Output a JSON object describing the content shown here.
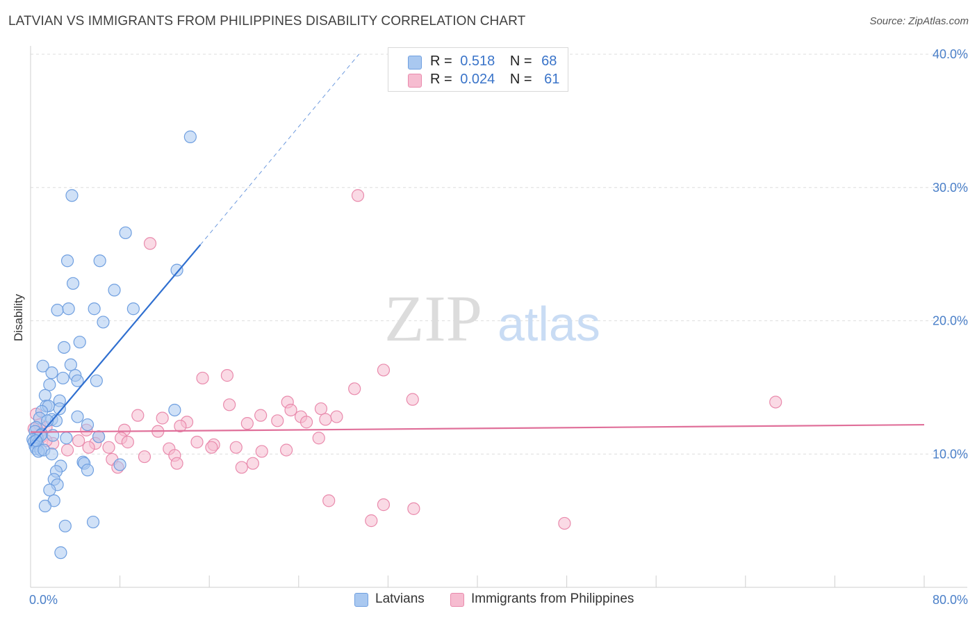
{
  "title": "LATVIAN VS IMMIGRANTS FROM PHILIPPINES DISABILITY CORRELATION CHART",
  "source": "Source: ZipAtlas.com",
  "watermark": {
    "zip": "ZIP",
    "atlas": "atlas"
  },
  "colors": {
    "blue_fill": "#a9c8f0",
    "blue_stroke": "#6f9fe0",
    "blue_line": "#2f6fd0",
    "pink_fill": "#f6bcd0",
    "pink_stroke": "#e98aac",
    "pink_line": "#e0709a",
    "grid": "#dedede",
    "axis_text": "#4a7fc8"
  },
  "legend_top": {
    "rows": [
      {
        "r_label": "R =",
        "r_value": "0.518",
        "n_label": "N =",
        "n_value": "68",
        "series": "blue"
      },
      {
        "r_label": "R =",
        "r_value": "0.024",
        "n_label": "N =",
        "n_value": "61",
        "series": "pink"
      }
    ]
  },
  "chart_data": {
    "type": "scatter",
    "title": "LATVIAN VS IMMIGRANTS FROM PHILIPPINES DISABILITY CORRELATION CHART",
    "xlabel": "",
    "ylabel": "Disability",
    "xlim": [
      0,
      80
    ],
    "ylim": [
      0,
      40
    ],
    "x_tick_labels": [
      "0.0%",
      "80.0%"
    ],
    "y_ticks": [
      10,
      20,
      30,
      40
    ],
    "y_tick_labels": [
      "10.0%",
      "20.0%",
      "30.0%",
      "40.0%"
    ],
    "grid": true,
    "legend": [
      "Latvians",
      "Immigrants from Philippines"
    ],
    "series": [
      {
        "name": "Latvians",
        "color": "blue",
        "R": 0.518,
        "N": 68,
        "trend": {
          "x0": 0,
          "y0": 10.6,
          "x1": 15.2,
          "y1": 25.7,
          "dash_to_x": 29.4,
          "dash_to_y": 40
        },
        "points": [
          [
            14.3,
            33.8
          ],
          [
            3.7,
            29.4
          ],
          [
            8.5,
            26.6
          ],
          [
            3.3,
            24.5
          ],
          [
            6.2,
            24.5
          ],
          [
            13.1,
            23.8
          ],
          [
            3.8,
            22.8
          ],
          [
            7.5,
            22.3
          ],
          [
            2.4,
            20.8
          ],
          [
            3.4,
            20.9
          ],
          [
            5.7,
            20.9
          ],
          [
            9.2,
            20.9
          ],
          [
            6.5,
            19.9
          ],
          [
            4.4,
            18.4
          ],
          [
            3.0,
            18.0
          ],
          [
            1.1,
            16.6
          ],
          [
            3.6,
            16.7
          ],
          [
            1.9,
            16.1
          ],
          [
            2.9,
            15.7
          ],
          [
            4.0,
            15.9
          ],
          [
            4.2,
            15.5
          ],
          [
            5.9,
            15.5
          ],
          [
            1.7,
            15.2
          ],
          [
            1.3,
            14.4
          ],
          [
            1.4,
            13.6
          ],
          [
            1.6,
            13.6
          ],
          [
            2.6,
            14.0
          ],
          [
            2.6,
            13.4
          ],
          [
            12.9,
            13.3
          ],
          [
            1.0,
            13.2
          ],
          [
            0.8,
            12.7
          ],
          [
            1.9,
            12.6
          ],
          [
            2.3,
            12.5
          ],
          [
            4.2,
            12.8
          ],
          [
            5.1,
            12.2
          ],
          [
            0.5,
            12.0
          ],
          [
            0.4,
            11.7
          ],
          [
            1.0,
            11.5
          ],
          [
            0.6,
            11.2
          ],
          [
            0.2,
            11.1
          ],
          [
            0.3,
            10.9
          ],
          [
            0.6,
            10.8
          ],
          [
            0.4,
            10.6
          ],
          [
            0.5,
            10.4
          ],
          [
            3.2,
            11.2
          ],
          [
            6.1,
            11.3
          ],
          [
            0.9,
            10.3
          ],
          [
            0.7,
            10.2
          ],
          [
            1.2,
            10.3
          ],
          [
            1.9,
            10.0
          ],
          [
            2.7,
            9.1
          ],
          [
            4.7,
            9.4
          ],
          [
            4.8,
            9.3
          ],
          [
            8.0,
            9.2
          ],
          [
            5.1,
            8.8
          ],
          [
            2.3,
            8.7
          ],
          [
            2.1,
            8.1
          ],
          [
            2.4,
            7.7
          ],
          [
            1.7,
            7.3
          ],
          [
            2.1,
            6.5
          ],
          [
            1.3,
            6.1
          ],
          [
            5.6,
            4.9
          ],
          [
            3.1,
            4.6
          ],
          [
            2.7,
            2.6
          ],
          [
            1.5,
            12.5
          ],
          [
            0.9,
            11.4
          ],
          [
            0.5,
            11.0
          ],
          [
            2.0,
            11.4
          ]
        ]
      },
      {
        "name": "Immigrants from Philippines",
        "color": "pink",
        "R": 0.024,
        "N": 61,
        "trend": {
          "x0": 0,
          "y0": 11.65,
          "x1": 80,
          "y1": 12.2
        },
        "points": [
          [
            29.3,
            29.4
          ],
          [
            10.7,
            25.8
          ],
          [
            31.6,
            16.3
          ],
          [
            17.6,
            15.9
          ],
          [
            15.4,
            15.7
          ],
          [
            29.0,
            14.9
          ],
          [
            34.2,
            14.1
          ],
          [
            66.7,
            13.9
          ],
          [
            23.0,
            13.9
          ],
          [
            17.8,
            13.7
          ],
          [
            26.0,
            13.4
          ],
          [
            23.3,
            13.3
          ],
          [
            9.6,
            12.9
          ],
          [
            20.6,
            12.9
          ],
          [
            27.4,
            12.8
          ],
          [
            24.2,
            12.8
          ],
          [
            11.8,
            12.7
          ],
          [
            26.4,
            12.6
          ],
          [
            22.1,
            12.5
          ],
          [
            24.7,
            12.4
          ],
          [
            14.0,
            12.4
          ],
          [
            19.4,
            12.3
          ],
          [
            13.4,
            12.1
          ],
          [
            0.5,
            13.0
          ],
          [
            0.8,
            12.2
          ],
          [
            1.4,
            12.0
          ],
          [
            1.0,
            11.3
          ],
          [
            5.0,
            11.8
          ],
          [
            6.1,
            11.3
          ],
          [
            8.4,
            11.8
          ],
          [
            11.4,
            11.7
          ],
          [
            8.1,
            11.2
          ],
          [
            4.3,
            11.0
          ],
          [
            2.0,
            10.8
          ],
          [
            5.8,
            10.8
          ],
          [
            8.7,
            10.9
          ],
          [
            14.9,
            10.9
          ],
          [
            16.4,
            10.7
          ],
          [
            16.2,
            10.5
          ],
          [
            25.8,
            11.2
          ],
          [
            12.4,
            10.4
          ],
          [
            18.4,
            10.5
          ],
          [
            7.0,
            10.5
          ],
          [
            5.2,
            10.5
          ],
          [
            3.3,
            10.3
          ],
          [
            20.7,
            10.2
          ],
          [
            22.9,
            10.3
          ],
          [
            12.9,
            9.9
          ],
          [
            10.2,
            9.8
          ],
          [
            7.3,
            9.6
          ],
          [
            13.1,
            9.3
          ],
          [
            19.9,
            9.3
          ],
          [
            18.9,
            9.0
          ],
          [
            7.8,
            9.0
          ],
          [
            26.7,
            6.5
          ],
          [
            31.6,
            6.2
          ],
          [
            34.3,
            5.9
          ],
          [
            30.5,
            5.0
          ],
          [
            47.8,
            4.8
          ],
          [
            1.4,
            11.0
          ],
          [
            0.3,
            11.9
          ]
        ]
      }
    ]
  }
}
